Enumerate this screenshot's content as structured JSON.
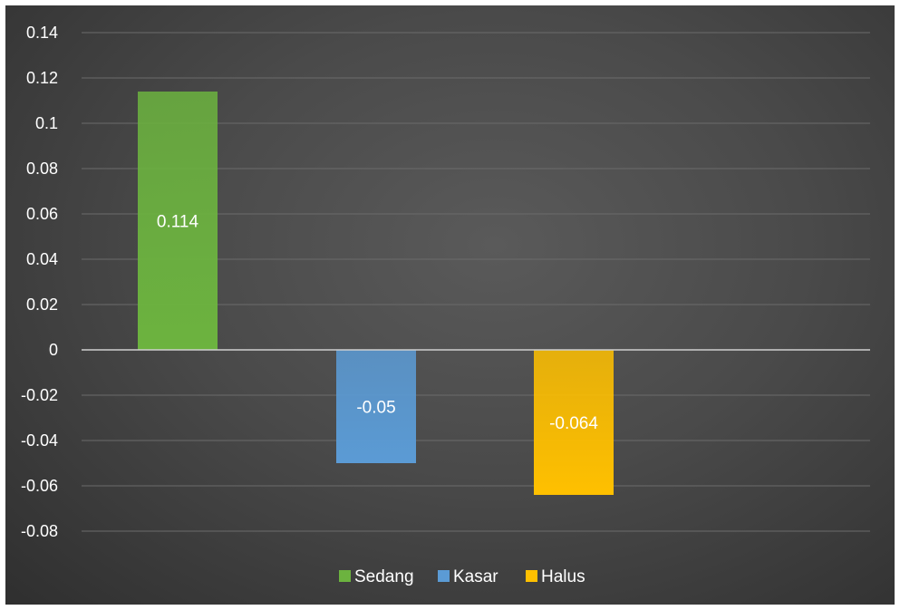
{
  "chart_data": {
    "type": "bar",
    "title": "",
    "xlabel": "",
    "ylabel": "",
    "ylim": [
      -0.08,
      0.14
    ],
    "ytick_step": 0.02,
    "yticks": [
      "0.14",
      "0.12",
      "0.1",
      "0.08",
      "0.06",
      "0.04",
      "0.02",
      "0",
      "-0.02",
      "-0.04",
      "-0.06",
      "-0.08"
    ],
    "grid": true,
    "legend_position": "bottom",
    "categories": [
      ""
    ],
    "series": [
      {
        "name": "Sedang",
        "values": [
          0.114
        ],
        "label": "0.114",
        "color": "#6cb33f"
      },
      {
        "name": "Kasar",
        "values": [
          -0.05
        ],
        "label": "-0.05",
        "color": "#5b9bd5"
      },
      {
        "name": "Halus",
        "values": [
          -0.064
        ],
        "label": "-0.064",
        "color": "#ffc000"
      }
    ]
  }
}
